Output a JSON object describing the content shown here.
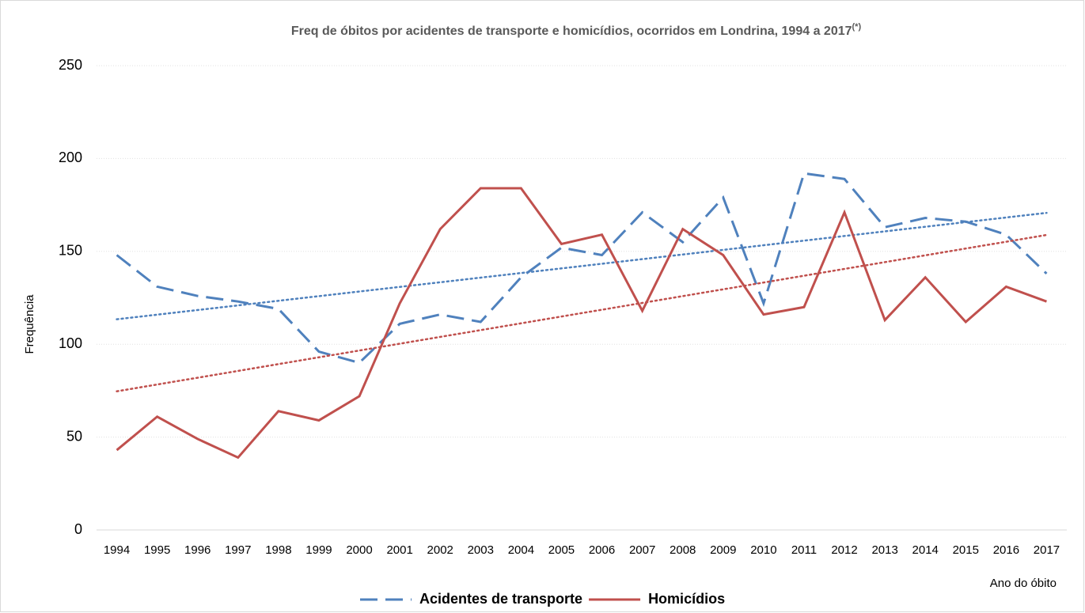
{
  "chart_data": {
    "type": "line",
    "title": "Freq de óbitos por acidentes de transporte e homicídios, ocorridos em Londrina, 1994 a 2017",
    "title_note": "(*)",
    "y_label": "Frequência",
    "x_label": "Ano do óbito",
    "categories": [
      "1994",
      "1995",
      "1996",
      "1997",
      "1998",
      "1999",
      "2000",
      "2001",
      "2002",
      "2003",
      "2004",
      "2005",
      "2006",
      "2007",
      "2008",
      "2009",
      "2010",
      "2011",
      "2012",
      "2013",
      "2014",
      "2015",
      "2016",
      "2017"
    ],
    "series": [
      {
        "name": "Acidentes de transporte",
        "color": "#4f81bd",
        "dash": "dashed",
        "trendline": true,
        "values": [
          148,
          131,
          126,
          123,
          119,
          96,
          90,
          111,
          116,
          112,
          136,
          152,
          148,
          171,
          155,
          179,
          122,
          192,
          189,
          163,
          168,
          166,
          159,
          138
        ]
      },
      {
        "name": "Homicídios",
        "color": "#c0504d",
        "dash": "solid",
        "trendline": true,
        "values": [
          43,
          61,
          49,
          39,
          64,
          59,
          72,
          122,
          162,
          184,
          184,
          154,
          159,
          118,
          162,
          148,
          116,
          120,
          171,
          113,
          136,
          112,
          131,
          123
        ]
      }
    ],
    "ylim": [
      0,
      250
    ],
    "yticks": [
      0,
      50,
      100,
      150,
      200,
      250
    ],
    "grid": true,
    "legend": "bottom"
  }
}
